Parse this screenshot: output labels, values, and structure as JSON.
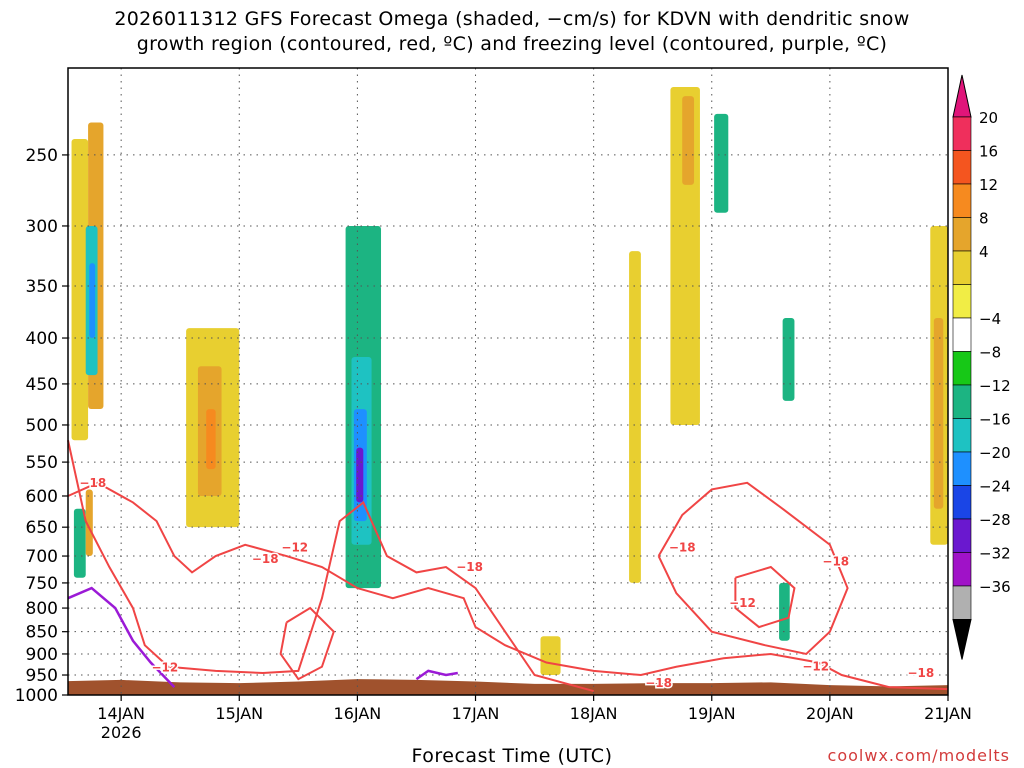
{
  "title_lines": [
    "2026011312 GFS Forecast Omega (shaded, −cm/s) for KDVN with dendritic snow",
    "growth region (contoured, red, ºC) and freezing level (contoured, purple, ºC)"
  ],
  "credit": "coolwx.com/modelts",
  "chart_data": {
    "type": "heatmap",
    "xlabel": "Forecast Time (UTC)",
    "ylabel": "",
    "x_ticks": [
      {
        "value": 0,
        "label": "14JAN",
        "sublabel": "2026"
      },
      {
        "value": 1,
        "label": "15JAN"
      },
      {
        "value": 2,
        "label": "16JAN"
      },
      {
        "value": 3,
        "label": "17JAN"
      },
      {
        "value": 4,
        "label": "18JAN"
      },
      {
        "value": 5,
        "label": "19JAN"
      },
      {
        "value": 6,
        "label": "20JAN"
      },
      {
        "value": 7,
        "label": "21JAN"
      }
    ],
    "xlim": [
      -0.45,
      7.0
    ],
    "y_ticks": [
      250,
      300,
      350,
      400,
      450,
      500,
      550,
      600,
      650,
      700,
      750,
      800,
      850,
      900,
      950,
      1000
    ],
    "ylim": [
      1000,
      200
    ],
    "yscale": "log",
    "grid": true,
    "colorbar": {
      "labels": [
        "20",
        "16",
        "12",
        "8",
        "4",
        "−4",
        "−8",
        "−12",
        "−16",
        "−20",
        "−24",
        "−28",
        "−32",
        "−36"
      ],
      "colors": [
        "#ef2f5c",
        "#f4551f",
        "#f68a1f",
        "#e5a52c",
        "#e8cf30",
        "#f1ed45",
        "#ffffff",
        "#17c817",
        "#1cb482",
        "#1ec2c2",
        "#1e90ff",
        "#1a45e6",
        "#6a18cf",
        "#a012c8",
        "#b0b0b0"
      ],
      "top_color": "#e0157a",
      "bottom_color": "#000000"
    },
    "omega_regions": [
      {
        "x": [
          -0.42,
          -0.28
        ],
        "p": [
          240,
          520
        ],
        "level": 4
      },
      {
        "x": [
          -0.28,
          -0.15
        ],
        "p": [
          230,
          480
        ],
        "level": 8
      },
      {
        "x": [
          -0.3,
          -0.2
        ],
        "p": [
          300,
          440
        ],
        "level": -12
      },
      {
        "x": [
          -0.27,
          -0.22
        ],
        "p": [
          330,
          400
        ],
        "level": -16
      },
      {
        "x": [
          -0.4,
          -0.3
        ],
        "p": [
          620,
          740
        ],
        "level": -8
      },
      {
        "x": [
          -0.3,
          -0.24
        ],
        "p": [
          590,
          700
        ],
        "level": 8
      },
      {
        "x": [
          0.55,
          1.0
        ],
        "p": [
          390,
          650
        ],
        "level": 4
      },
      {
        "x": [
          0.65,
          0.85
        ],
        "p": [
          430,
          600
        ],
        "level": 8
      },
      {
        "x": [
          0.72,
          0.8
        ],
        "p": [
          480,
          560
        ],
        "level": 12
      },
      {
        "x": [
          1.9,
          2.2
        ],
        "p": [
          300,
          760
        ],
        "level": -8
      },
      {
        "x": [
          1.95,
          2.12
        ],
        "p": [
          420,
          680
        ],
        "level": -12
      },
      {
        "x": [
          1.97,
          2.08
        ],
        "p": [
          480,
          640
        ],
        "level": -16
      },
      {
        "x": [
          1.99,
          2.05
        ],
        "p": [
          530,
          610
        ],
        "level": -24
      },
      {
        "x": [
          3.55,
          3.72
        ],
        "p": [
          860,
          950
        ],
        "level": 4
      },
      {
        "x": [
          4.3,
          4.4
        ],
        "p": [
          320,
          750
        ],
        "level": 4
      },
      {
        "x": [
          4.65,
          4.9
        ],
        "p": [
          210,
          500
        ],
        "level": 4
      },
      {
        "x": [
          4.75,
          4.85
        ],
        "p": [
          215,
          270
        ],
        "level": 8
      },
      {
        "x": [
          5.02,
          5.14
        ],
        "p": [
          225,
          290
        ],
        "level": -8
      },
      {
        "x": [
          5.6,
          5.7
        ],
        "p": [
          380,
          470
        ],
        "level": -8
      },
      {
        "x": [
          5.57,
          5.66
        ],
        "p": [
          750,
          870
        ],
        "level": -8
      },
      {
        "x": [
          6.85,
          7.0
        ],
        "p": [
          300,
          680
        ],
        "level": 4
      },
      {
        "x": [
          6.88,
          6.96
        ],
        "p": [
          380,
          620
        ],
        "level": 8
      }
    ],
    "dgz_contours": [
      {
        "label": "−18",
        "points": [
          [
            -0.45,
            600
          ],
          [
            -0.2,
            580
          ],
          [
            0.1,
            610
          ],
          [
            0.3,
            640
          ],
          [
            0.45,
            700
          ],
          [
            0.6,
            730
          ],
          [
            0.8,
            700
          ],
          [
            1.05,
            680
          ],
          [
            1.4,
            700
          ],
          [
            1.7,
            720
          ],
          [
            2.0,
            760
          ],
          [
            2.3,
            780
          ],
          [
            2.6,
            760
          ],
          [
            2.9,
            780
          ],
          [
            3.0,
            840
          ],
          [
            3.25,
            880
          ],
          [
            3.6,
            920
          ],
          [
            4.0,
            940
          ],
          [
            4.4,
            950
          ],
          [
            4.7,
            930
          ],
          [
            5.1,
            910
          ],
          [
            5.5,
            900
          ],
          [
            5.9,
            920
          ],
          [
            6.1,
            950
          ],
          [
            6.5,
            980
          ],
          [
            7.0,
            985
          ]
        ]
      },
      {
        "label": "−12",
        "points": [
          [
            -0.45,
            520
          ],
          [
            -0.3,
            640
          ],
          [
            -0.1,
            720
          ],
          [
            0.1,
            800
          ],
          [
            0.2,
            880
          ],
          [
            0.4,
            930
          ],
          [
            0.8,
            940
          ],
          [
            1.2,
            945
          ],
          [
            1.5,
            940
          ],
          [
            1.7,
            780
          ],
          [
            1.85,
            640
          ],
          [
            2.05,
            610
          ],
          [
            2.25,
            700
          ],
          [
            2.5,
            730
          ],
          [
            2.75,
            720
          ],
          [
            3.0,
            760
          ],
          [
            3.5,
            950
          ],
          [
            4.0,
            990
          ]
        ]
      },
      {
        "label": "−18",
        "points": [
          [
            4.55,
            700
          ],
          [
            4.75,
            630
          ],
          [
            5.0,
            590
          ],
          [
            5.3,
            580
          ],
          [
            5.6,
            620
          ],
          [
            6.0,
            680
          ],
          [
            6.15,
            760
          ],
          [
            6.0,
            850
          ],
          [
            5.8,
            900
          ],
          [
            5.45,
            880
          ],
          [
            5.0,
            850
          ],
          [
            4.7,
            770
          ],
          [
            4.55,
            700
          ]
        ]
      },
      {
        "label": "−12",
        "points": [
          [
            5.2,
            740
          ],
          [
            5.5,
            720
          ],
          [
            5.7,
            760
          ],
          [
            5.65,
            820
          ],
          [
            5.4,
            840
          ],
          [
            5.2,
            800
          ],
          [
            5.2,
            740
          ]
        ]
      },
      {
        "label": "−12",
        "points": [
          [
            1.4,
            830
          ],
          [
            1.6,
            800
          ],
          [
            1.8,
            850
          ],
          [
            1.7,
            930
          ],
          [
            1.5,
            960
          ],
          [
            1.35,
            900
          ],
          [
            1.4,
            830
          ]
        ]
      }
    ],
    "freezing_contours": [
      {
        "points": [
          [
            -0.45,
            780
          ],
          [
            -0.25,
            760
          ],
          [
            -0.05,
            800
          ],
          [
            0.1,
            870
          ],
          [
            0.25,
            920
          ],
          [
            0.45,
            980
          ]
        ]
      },
      {
        "points": [
          [
            2.5,
            960
          ],
          [
            2.6,
            940
          ],
          [
            2.75,
            950
          ],
          [
            2.85,
            945
          ]
        ]
      }
    ],
    "contour_labels": [
      {
        "text": "−18",
        "x": -0.24,
        "p": 580
      },
      {
        "text": "−18",
        "x": 1.22,
        "p": 705
      },
      {
        "text": "−12",
        "x": 1.47,
        "p": 685
      },
      {
        "text": "−12",
        "x": 0.37,
        "p": 932
      },
      {
        "text": "−18",
        "x": 2.95,
        "p": 720
      },
      {
        "text": "−18",
        "x": 4.75,
        "p": 685
      },
      {
        "text": "−12",
        "x": 5.26,
        "p": 790
      },
      {
        "text": "−18",
        "x": 6.05,
        "p": 710
      },
      {
        "text": "−12",
        "x": 5.88,
        "p": 930
      },
      {
        "text": "−18",
        "x": 4.55,
        "p": 970
      },
      {
        "text": "−18",
        "x": 6.77,
        "p": 945
      }
    ],
    "terrain": {
      "color": "#a0522d",
      "points": [
        [
          -0.45,
          965
        ],
        [
          0.0,
          962
        ],
        [
          0.5,
          968
        ],
        [
          1.0,
          970
        ],
        [
          1.5,
          966
        ],
        [
          2.0,
          960
        ],
        [
          2.5,
          962
        ],
        [
          3.0,
          966
        ],
        [
          3.5,
          972
        ],
        [
          4.0,
          972
        ],
        [
          4.5,
          970
        ],
        [
          5.0,
          970
        ],
        [
          5.5,
          968
        ],
        [
          6.0,
          975
        ],
        [
          6.5,
          978
        ],
        [
          7.0,
          975
        ]
      ]
    }
  }
}
